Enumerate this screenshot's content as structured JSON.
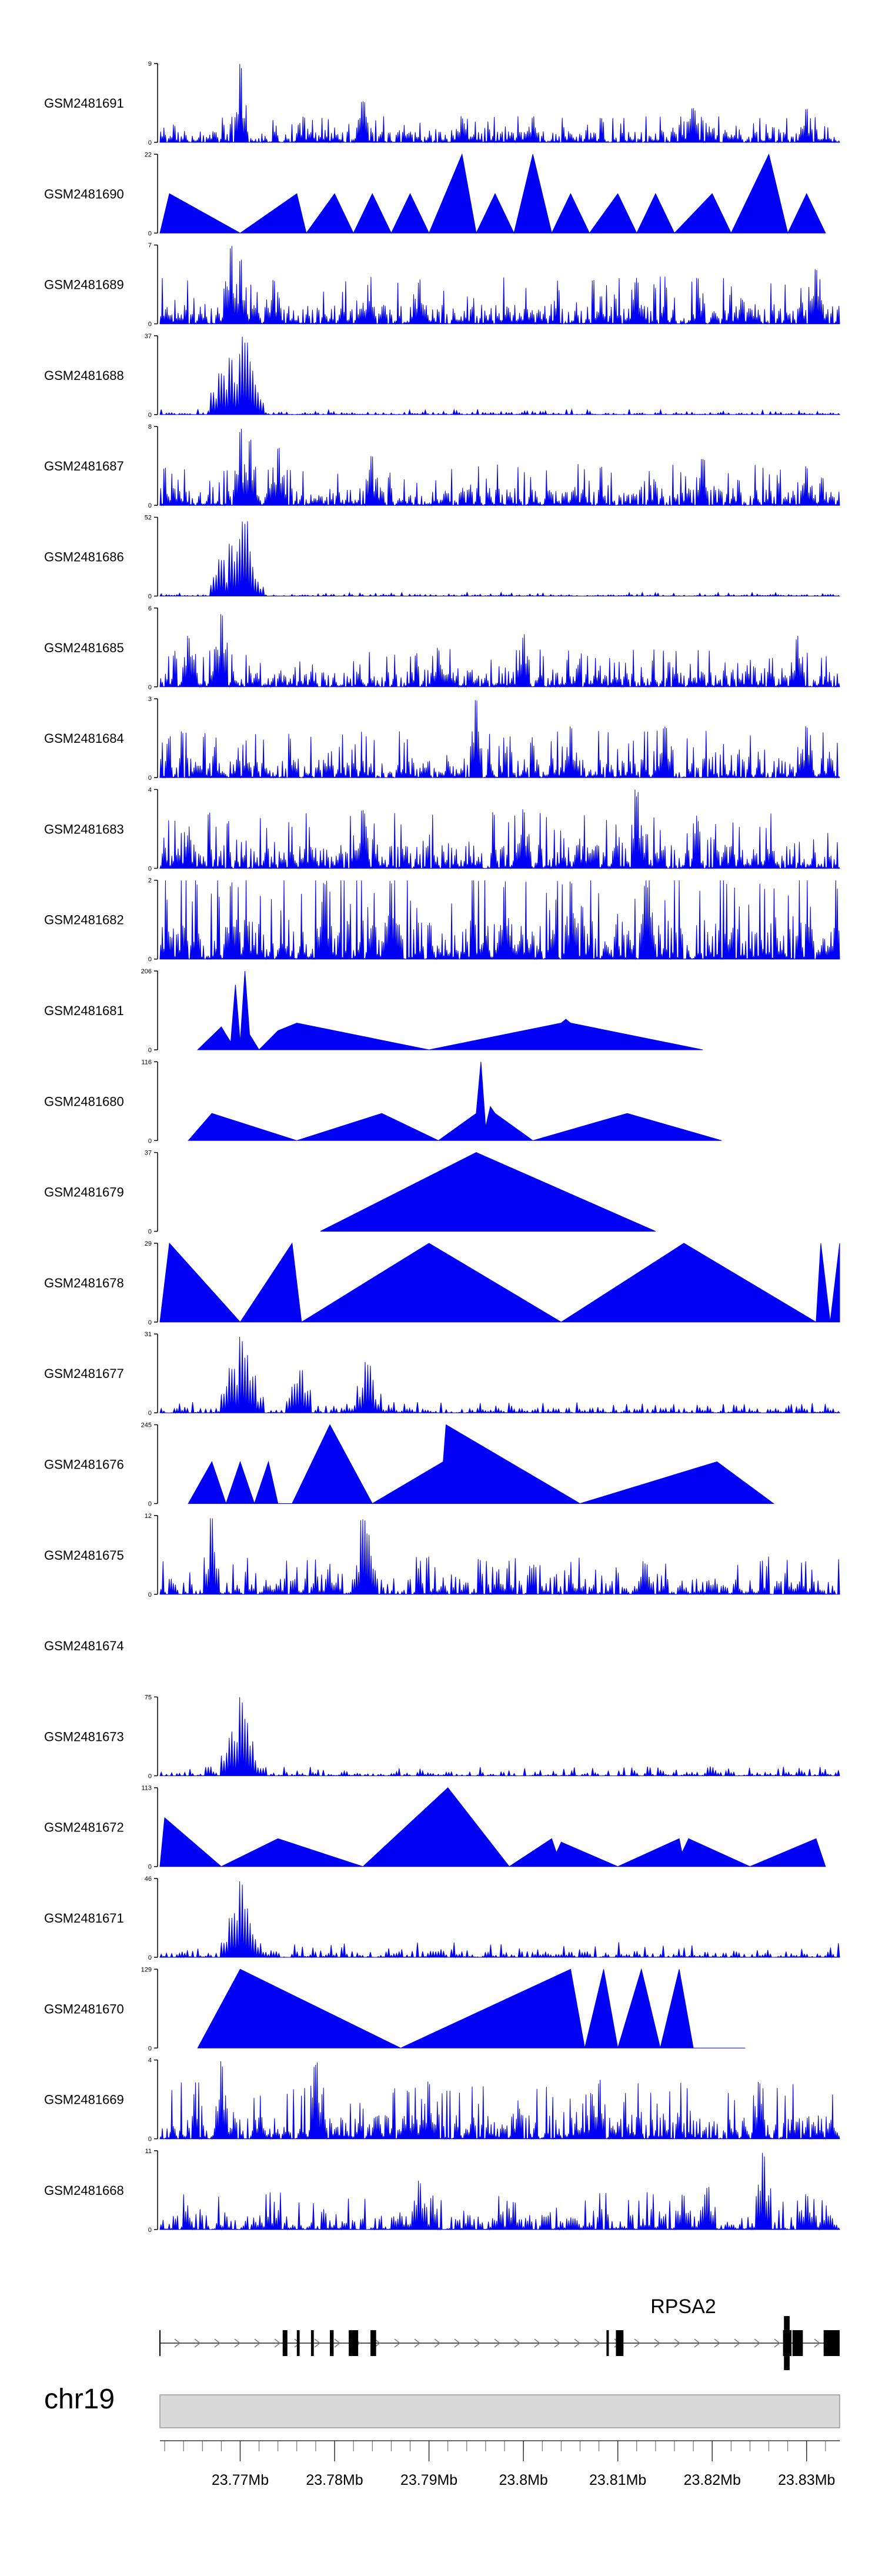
{
  "colors": {
    "track_fill": "#0000f5",
    "axis": "#000000",
    "ideogram_fill": "#d9d9d9",
    "ideogram_stroke": "#999999",
    "gene_fill": "#000000"
  },
  "chart_data": {
    "type": "area",
    "title": "",
    "xlabel": "",
    "ylabel": "",
    "x_domain_mb": [
      23.7615,
      23.8335
    ],
    "tracks": [
      {
        "name": "GSM2481691",
        "ymax": 9,
        "style": "spiky",
        "density": "dense",
        "base": 0.14,
        "peaks": [
          [
            23.77,
            9
          ],
          [
            23.783,
            5
          ],
          [
            23.7935,
            3
          ],
          [
            23.801,
            3
          ],
          [
            23.818,
            4
          ],
          [
            23.83,
            4
          ]
        ]
      },
      {
        "name": "GSM2481690",
        "ymax": 22,
        "style": "triangles",
        "x": [
          23.7615,
          23.7625,
          23.77,
          23.776,
          23.777,
          23.78,
          23.782,
          23.784,
          23.786,
          23.788,
          23.79,
          23.7935,
          23.795,
          23.797,
          23.799,
          23.801,
          23.803,
          23.805,
          23.807,
          23.81,
          23.812,
          23.814,
          23.816,
          23.82,
          23.822,
          23.826,
          23.828,
          23.83,
          23.832
        ],
        "y": [
          0,
          11,
          0,
          11,
          0,
          11,
          0,
          11,
          0,
          11,
          0,
          22,
          0,
          11,
          0,
          22,
          0,
          11,
          0,
          11,
          0,
          11,
          0,
          11,
          0,
          22,
          0,
          11,
          0
        ]
      },
      {
        "name": "GSM2481689",
        "ymax": 7,
        "style": "spiky",
        "density": "dense",
        "base": 0.25,
        "peaks": [
          [
            23.769,
            7
          ],
          [
            23.77,
            6
          ],
          [
            23.7735,
            4
          ],
          [
            23.789,
            4
          ],
          [
            23.812,
            4
          ],
          [
            23.831,
            5
          ]
        ]
      },
      {
        "name": "GSM2481688",
        "ymax": 37,
        "style": "spiky",
        "density": "sparse",
        "base": 0.03,
        "peaks": [
          [
            23.768,
            20
          ],
          [
            23.769,
            28
          ],
          [
            23.77,
            30
          ],
          [
            23.7705,
            37
          ],
          [
            23.771,
            25
          ],
          [
            23.7715,
            15
          ]
        ]
      },
      {
        "name": "GSM2481687",
        "ymax": 8,
        "style": "spiky",
        "density": "dense",
        "base": 0.22,
        "peaks": [
          [
            23.77,
            8
          ],
          [
            23.771,
            7
          ],
          [
            23.774,
            6
          ],
          [
            23.784,
            5
          ],
          [
            23.819,
            5
          ],
          [
            23.83,
            4
          ]
        ]
      },
      {
        "name": "GSM2481686",
        "ymax": 52,
        "style": "spiky",
        "density": "sparse",
        "base": 0.02,
        "peaks": [
          [
            23.768,
            25
          ],
          [
            23.769,
            35
          ],
          [
            23.77,
            38
          ],
          [
            23.7705,
            52
          ],
          [
            23.771,
            30
          ],
          [
            23.7715,
            12
          ]
        ]
      },
      {
        "name": "GSM2481685",
        "ymax": 6,
        "style": "spiky",
        "density": "dense",
        "base": 0.2,
        "peaks": [
          [
            23.768,
            6
          ],
          [
            23.7645,
            4
          ],
          [
            23.791,
            3
          ],
          [
            23.8,
            4
          ],
          [
            23.829,
            4
          ]
        ]
      },
      {
        "name": "GSM2481684",
        "ymax": 3,
        "style": "spiky",
        "density": "dense",
        "base": 0.25,
        "peaks": [
          [
            23.795,
            3
          ],
          [
            23.805,
            2
          ],
          [
            23.815,
            2
          ],
          [
            23.83,
            2
          ]
        ]
      },
      {
        "name": "GSM2481683",
        "ymax": 4,
        "style": "spiky",
        "density": "dense",
        "base": 0.3,
        "peaks": [
          [
            23.783,
            3
          ],
          [
            23.812,
            4
          ],
          [
            23.8,
            3
          ]
        ]
      },
      {
        "name": "GSM2481682",
        "ymax": 2,
        "style": "spiky",
        "density": "dense",
        "base": 0.5,
        "peaks": [
          [
            23.769,
            2
          ],
          [
            23.779,
            2
          ],
          [
            23.786,
            2
          ],
          [
            23.798,
            2
          ],
          [
            23.805,
            2
          ],
          [
            23.813,
            2
          ]
        ]
      },
      {
        "name": "GSM2481681",
        "ymax": 206,
        "style": "triangles",
        "x": [
          23.7655,
          23.768,
          23.769,
          23.7695,
          23.77,
          23.7705,
          23.771,
          23.772,
          23.774,
          23.776,
          23.79,
          23.804,
          23.8045,
          23.805,
          23.819
        ],
        "y": [
          0,
          60,
          20,
          170,
          20,
          206,
          40,
          0,
          50,
          70,
          0,
          70,
          80,
          70,
          0
        ]
      },
      {
        "name": "GSM2481680",
        "ymax": 116,
        "style": "triangles",
        "x": [
          23.7645,
          23.767,
          23.776,
          23.785,
          23.791,
          23.795,
          23.7955,
          23.796,
          23.7965,
          23.797,
          23.801,
          23.811,
          23.821
        ],
        "y": [
          0,
          40,
          0,
          40,
          0,
          40,
          116,
          20,
          50,
          40,
          0,
          40,
          0
        ]
      },
      {
        "name": "GSM2481679",
        "ymax": 37,
        "style": "triangles",
        "x": [
          23.7785,
          23.795,
          23.814
        ],
        "y": [
          0,
          37,
          0
        ]
      },
      {
        "name": "GSM2481678",
        "ymax": 29,
        "style": "triangles",
        "x": [
          23.7615,
          23.7625,
          23.77,
          23.7755,
          23.7765,
          23.79,
          23.804,
          23.817,
          23.831,
          23.8315,
          23.8325,
          23.8335
        ],
        "y": [
          0,
          29,
          0,
          29,
          0,
          29,
          0,
          29,
          0,
          29,
          0,
          29
        ]
      },
      {
        "name": "GSM2481677",
        "ymax": 31,
        "style": "spiky",
        "density": "sparse",
        "base": 0.06,
        "peaks": [
          [
            23.769,
            18
          ],
          [
            23.77,
            31
          ],
          [
            23.7705,
            24
          ],
          [
            23.7715,
            15
          ],
          [
            23.776,
            12
          ],
          [
            23.7765,
            18
          ],
          [
            23.783,
            10
          ],
          [
            23.7835,
            20
          ],
          [
            23.784,
            13
          ]
        ]
      },
      {
        "name": "GSM2481676",
        "ymax": 245,
        "style": "triangles",
        "x": [
          23.7645,
          23.767,
          23.7685,
          23.77,
          23.7715,
          23.773,
          23.774,
          23.7755,
          23.7795,
          23.784,
          23.7915,
          23.7918,
          23.806,
          23.8205,
          23.8265
        ],
        "y": [
          0,
          130,
          0,
          130,
          0,
          130,
          0,
          0,
          245,
          0,
          130,
          245,
          0,
          130,
          0
        ]
      },
      {
        "name": "GSM2481675",
        "ymax": 12,
        "style": "spiky",
        "density": "medium",
        "base": 0.2,
        "peaks": [
          [
            23.767,
            12
          ],
          [
            23.783,
            12
          ],
          [
            23.7835,
            10
          ],
          [
            23.813,
            5
          ]
        ]
      },
      {
        "name": "GSM2481674",
        "ymax": null,
        "style": "empty"
      },
      {
        "name": "GSM2481673",
        "ymax": 75,
        "style": "spiky",
        "density": "sparse",
        "base": 0.05,
        "peaks": [
          [
            23.769,
            40
          ],
          [
            23.77,
            75
          ],
          [
            23.7705,
            55
          ],
          [
            23.771,
            30
          ],
          [
            23.7715,
            15
          ]
        ]
      },
      {
        "name": "GSM2481672",
        "ymax": 113,
        "style": "triangles",
        "x": [
          23.7615,
          23.762,
          23.768,
          23.774,
          23.783,
          23.792,
          23.7985,
          23.803,
          23.8035,
          23.804,
          23.81,
          23.8165,
          23.8168,
          23.8175,
          23.824,
          23.831,
          23.8315,
          23.832
        ],
        "y": [
          0,
          70,
          0,
          40,
          0,
          113,
          0,
          40,
          20,
          35,
          0,
          40,
          20,
          40,
          0,
          40,
          20,
          0
        ]
      },
      {
        "name": "GSM2481671",
        "ymax": 46,
        "style": "spiky",
        "density": "sparse",
        "base": 0.08,
        "peaks": [
          [
            23.769,
            25
          ],
          [
            23.77,
            46
          ],
          [
            23.7705,
            30
          ],
          [
            23.771,
            20
          ]
        ]
      },
      {
        "name": "GSM2481670",
        "ymax": 129,
        "style": "triangles",
        "x": [
          23.7655,
          23.77,
          23.787,
          23.805,
          23.8065,
          23.8085,
          23.81,
          23.8125,
          23.8145,
          23.8165,
          23.818,
          23.8235
        ],
        "y": [
          0,
          129,
          0,
          129,
          0,
          129,
          0,
          129,
          0,
          129,
          0,
          0
        ]
      },
      {
        "name": "GSM2481669",
        "ymax": 4,
        "style": "spiky",
        "density": "dense",
        "base": 0.3,
        "peaks": [
          [
            23.768,
            4
          ],
          [
            23.778,
            4
          ],
          [
            23.79,
            3
          ],
          [
            23.808,
            3
          ],
          [
            23.825,
            3
          ]
        ]
      },
      {
        "name": "GSM2481668",
        "ymax": 11,
        "style": "spiky",
        "density": "medium",
        "base": 0.2,
        "peaks": [
          [
            23.789,
            7
          ],
          [
            23.799,
            4
          ],
          [
            23.817,
            5
          ],
          [
            23.8195,
            6
          ],
          [
            23.8255,
            11
          ],
          [
            23.83,
            5
          ]
        ]
      }
    ],
    "gene": {
      "label": "RPSA2",
      "x_start_mb": 23.7615,
      "x_end_mb": 23.8335,
      "exons_mb": [
        [
          23.7745,
          23.775
        ],
        [
          23.776,
          23.7763
        ],
        [
          23.7775,
          23.7778
        ],
        [
          23.7795,
          23.7799
        ],
        [
          23.7815,
          23.7825
        ],
        [
          23.7838,
          23.7844
        ],
        [
          23.8088,
          23.809
        ],
        [
          23.8098,
          23.8106
        ],
        [
          23.8275,
          23.8284
        ],
        [
          23.8285,
          23.8296
        ],
        [
          23.8318,
          23.8335
        ]
      ],
      "tall_exons_mb": [
        [
          23.8276,
          23.8282
        ]
      ]
    },
    "ideogram": {
      "chromosome": "chr19",
      "ticks_mb": [
        23.77,
        23.78,
        23.79,
        23.8,
        23.81,
        23.82,
        23.83
      ],
      "tick_labels": [
        "23.77Mb",
        "23.78Mb",
        "23.79Mb",
        "23.8Mb",
        "23.81Mb",
        "23.82Mb",
        "23.83Mb"
      ],
      "minor_tick_step_mb": 0.002
    }
  }
}
